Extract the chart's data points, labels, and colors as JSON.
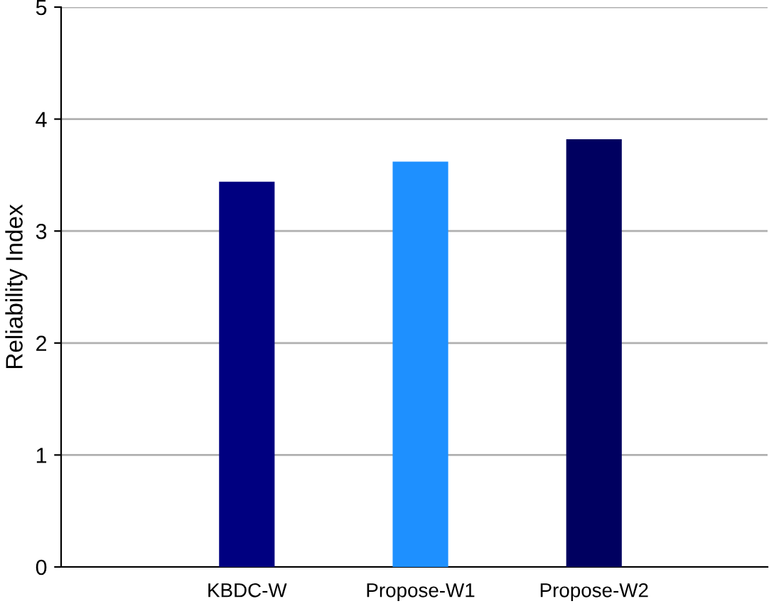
{
  "chart_data": {
    "type": "bar",
    "ylabel": "Reliability Index",
    "categories": [
      "KBDC-W",
      "Propose-W1",
      "Propose-W2"
    ],
    "values": [
      3.44,
      3.62,
      3.82
    ],
    "colors": [
      "#000080",
      "#1e90ff",
      "#000060"
    ],
    "ylim": [
      0,
      5
    ],
    "yticks": [
      0,
      1,
      2,
      3,
      4,
      5
    ],
    "grid": "y"
  }
}
